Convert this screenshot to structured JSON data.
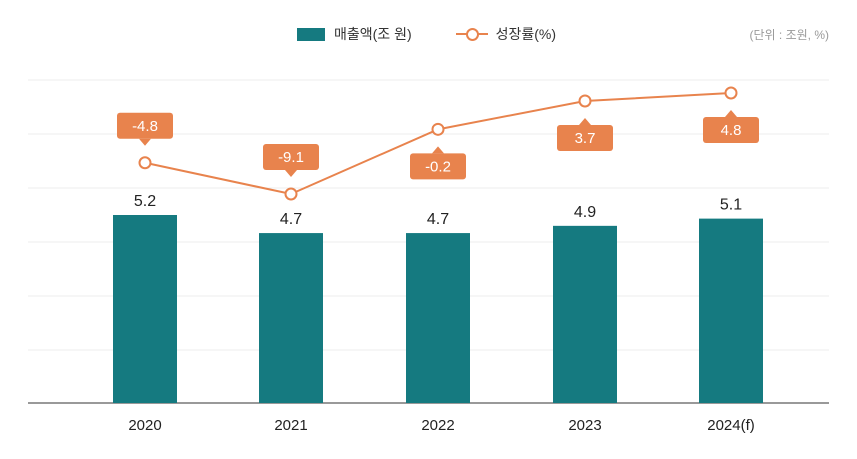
{
  "legend": {
    "bar_label": "매출액(조 원)",
    "line_label": "성장률(%)"
  },
  "unit_note": "(단위 : 조원, %)",
  "colors": {
    "bar": "#157a80",
    "line": "#e8834d",
    "grid": "#ececec",
    "axis": "#333333"
  },
  "chart_data": {
    "type": "bar",
    "title": "",
    "categories": [
      "2020",
      "2021",
      "2022",
      "2023",
      "2024(f)"
    ],
    "series": [
      {
        "name": "매출액(조 원)",
        "type": "bar",
        "values": [
          5.2,
          4.7,
          4.7,
          4.9,
          5.1
        ],
        "ylim": [
          0,
          8
        ]
      },
      {
        "name": "성장률(%)",
        "type": "line",
        "values": [
          -4.8,
          -9.1,
          -0.2,
          3.7,
          4.8
        ]
      }
    ],
    "xlabel": "",
    "ylabel": "",
    "grid": true,
    "legend_position": "top-center"
  }
}
